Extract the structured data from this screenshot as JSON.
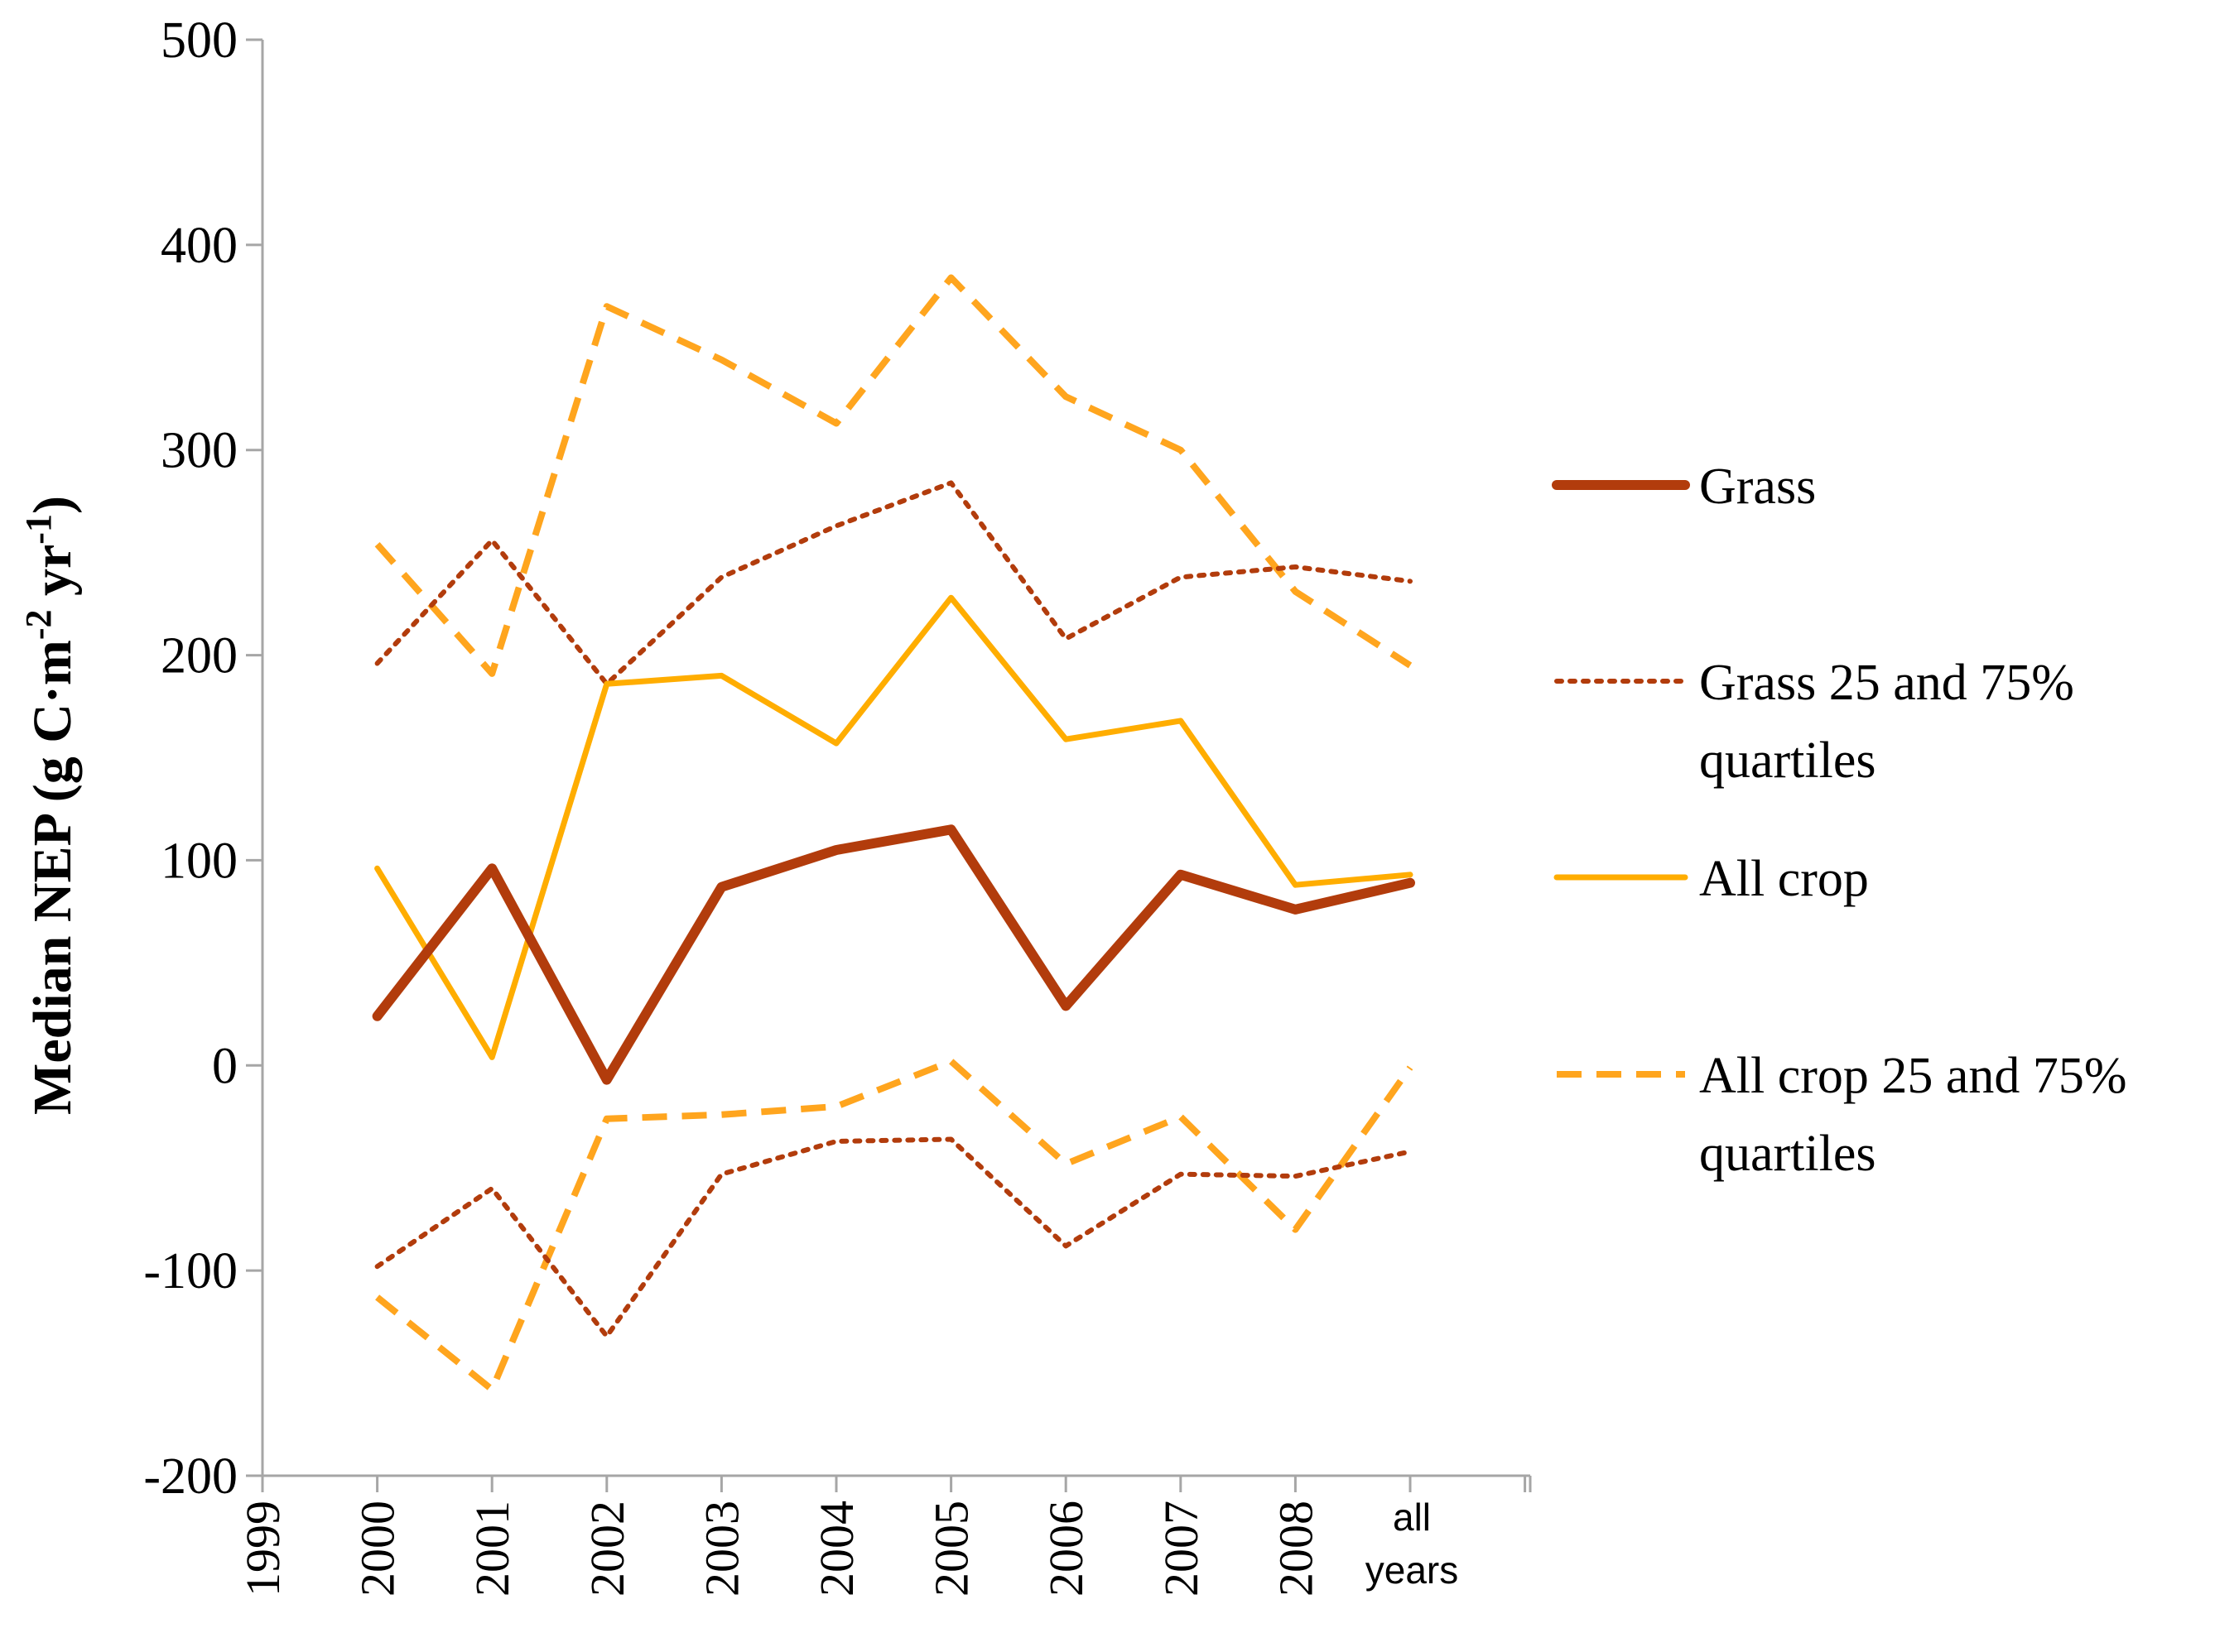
{
  "chart_data": {
    "type": "line",
    "title": "",
    "xlabel": "",
    "ylabel": "Median NEP (g C·m",
    "ylabel_sup1": "-2",
    "ylabel_mid": " yr",
    "ylabel_sup2": "-1",
    "ylabel_end": ")",
    "ylim": [
      -200,
      500
    ],
    "yticks": [
      "-200",
      "-100",
      "0",
      "100",
      "200",
      "300",
      "400",
      "500"
    ],
    "x_axis_start_label": "1999",
    "categories": [
      "2000",
      "2001",
      "2002",
      "2003",
      "2004",
      "2005",
      "2006",
      "2007",
      "2008",
      "all years"
    ],
    "last_category_lines": [
      "all",
      "years"
    ],
    "series": [
      {
        "name": "Grass",
        "style": "solid-thick",
        "color": "#b23c0c",
        "values": [
          24,
          96,
          -7,
          87,
          105,
          115,
          29,
          93,
          76,
          89
        ]
      },
      {
        "name": "Grass 25%",
        "style": "dotted",
        "color": "#b23c0c",
        "values": [
          -98,
          -60,
          -132,
          -53,
          -37,
          -36,
          -88,
          -53,
          -54,
          -42
        ]
      },
      {
        "name": "Grass 75%",
        "style": "dotted",
        "color": "#b23c0c",
        "values": [
          196,
          256,
          186,
          238,
          263,
          284,
          208,
          238,
          243,
          236
        ]
      },
      {
        "name": "All crop",
        "style": "solid",
        "color": "#ffad00",
        "values": [
          96,
          4,
          186,
          190,
          157,
          228,
          159,
          168,
          88,
          93
        ]
      },
      {
        "name": "All crop 25%",
        "style": "dashed",
        "color": "#ffa51e",
        "values": [
          -113,
          -158,
          -26,
          -24,
          -20,
          2,
          -48,
          -25,
          -80,
          -1
        ]
      },
      {
        "name": "All crop 75%",
        "style": "dashed",
        "color": "#ffa51e",
        "values": [
          254,
          191,
          370,
          344,
          313,
          384,
          326,
          300,
          231,
          195
        ]
      }
    ],
    "legend": [
      {
        "label_lines": [
          "Grass"
        ],
        "style": "solid-thick",
        "color": "#b23c0c"
      },
      {
        "label_lines": [
          "Grass 25 and 75%",
          "quartiles"
        ],
        "style": "dotted",
        "color": "#b23c0c"
      },
      {
        "label_lines": [
          "All crop"
        ],
        "style": "solid",
        "color": "#ffad00"
      },
      {
        "label_lines": [
          "All crop 25 and 75%",
          "quartiles"
        ],
        "style": "dashed",
        "color": "#ffa51e"
      }
    ],
    "legend_position": "right",
    "grid": false
  },
  "colors": {
    "axis": "#a6a6a6",
    "grass": "#b23c0c",
    "crop": "#ffad00",
    "crop_dashed": "#ffa51e"
  }
}
